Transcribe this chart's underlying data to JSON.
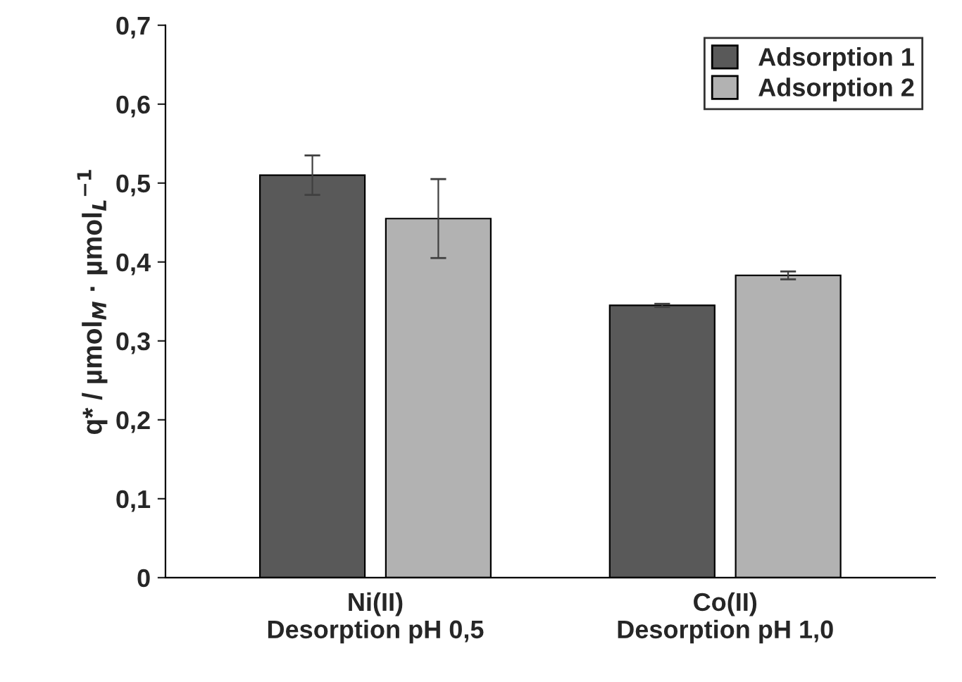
{
  "chart_data": {
    "type": "bar",
    "ylabel": "q* / µmol$_{M}$ · µmol$_{L}$$^{−1}$",
    "categories": [
      "Ni(II)\nDesorption pH 0,5",
      "Co(II)\nDesorption pH 1,0"
    ],
    "series": [
      {
        "name": "Adsorption 1",
        "color": "#595959",
        "values": [
          0.51,
          0.345
        ],
        "errors": [
          0.025,
          0.002
        ]
      },
      {
        "name": "Adsorption 2",
        "color": "#b2b2b2",
        "values": [
          0.455,
          0.383
        ],
        "errors": [
          0.05,
          0.005
        ]
      }
    ],
    "ylim": [
      0,
      0.7
    ],
    "yticks": [
      {
        "value": 0,
        "label": "0"
      },
      {
        "value": 0.1,
        "label": "0,1"
      },
      {
        "value": 0.2,
        "label": "0,2"
      },
      {
        "value": 0.3,
        "label": "0,3"
      },
      {
        "value": 0.4,
        "label": "0,4"
      },
      {
        "value": 0.5,
        "label": "0,5"
      },
      {
        "value": 0.6,
        "label": "0,6"
      },
      {
        "value": 0.7,
        "label": "0,7"
      }
    ],
    "legend": "top right",
    "grid": false
  }
}
